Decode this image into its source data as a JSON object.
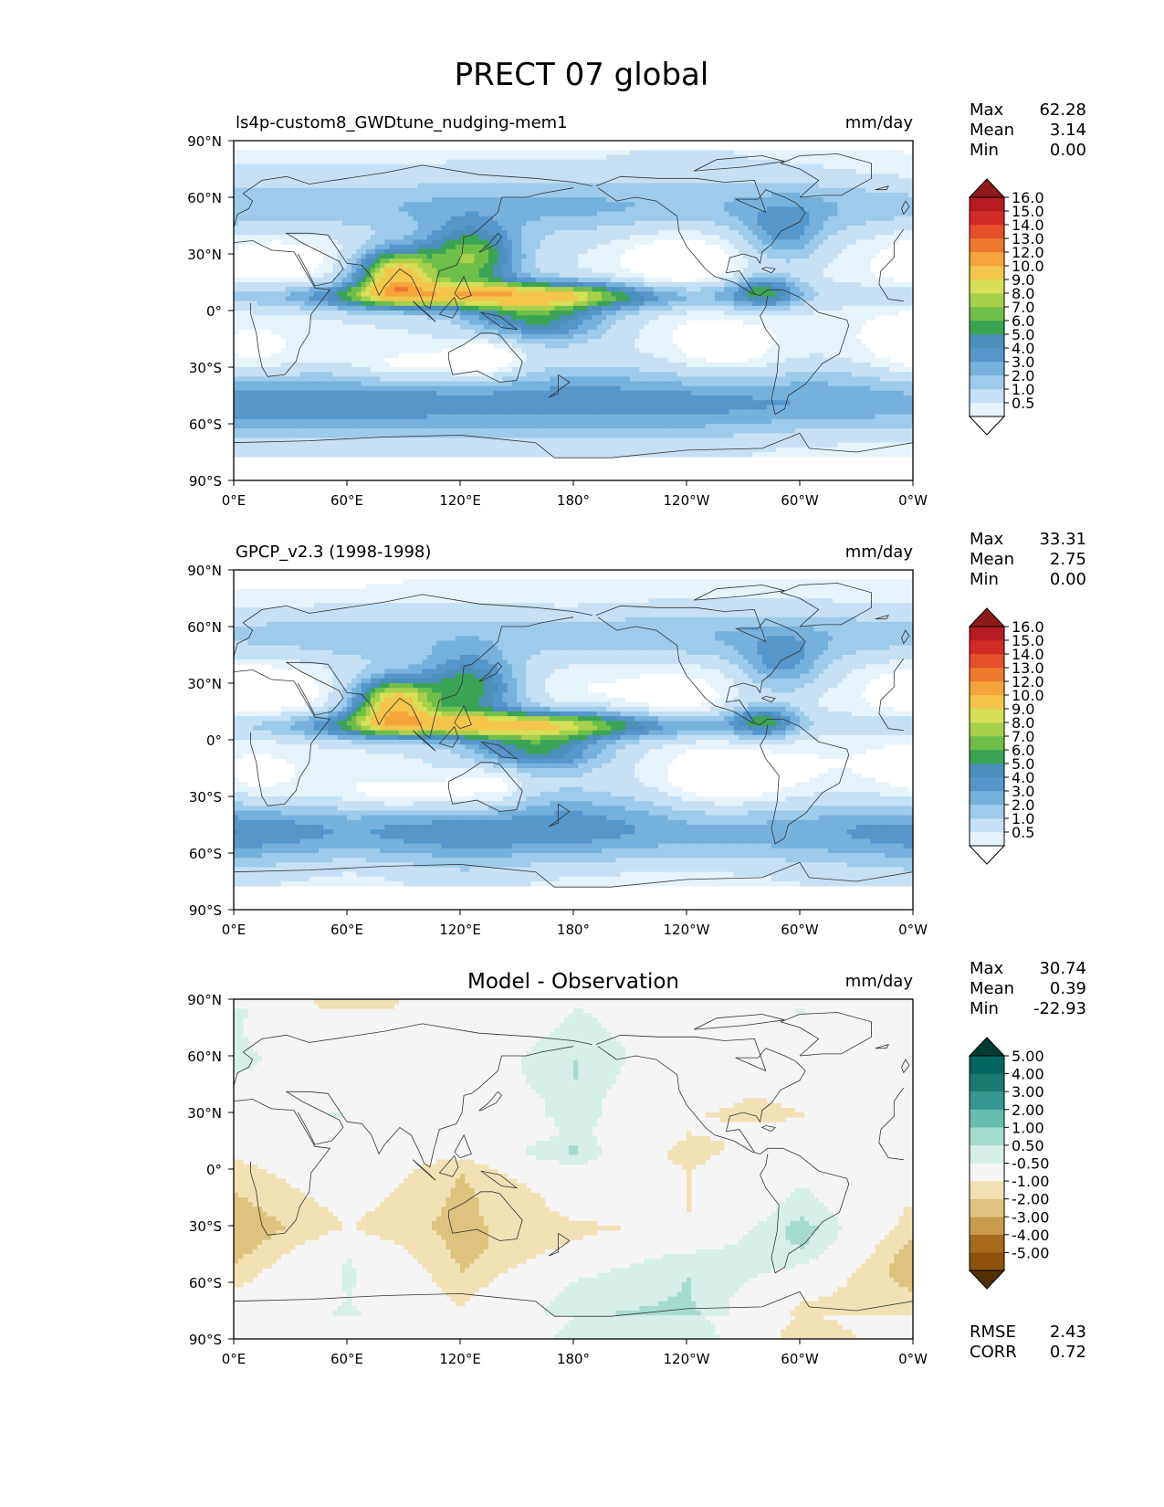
{
  "figure": {
    "title": "PRECT 07 global"
  },
  "axes": {
    "lat_ticks": [
      "90°N",
      "60°N",
      "30°N",
      "0°",
      "30°S",
      "60°S",
      "90°S"
    ],
    "lon_ticks": [
      "0°E",
      "60°E",
      "120°E",
      "180°",
      "120°W",
      "60°W",
      "0°W"
    ]
  },
  "panels": [
    {
      "left_title": "ls4p-custom8_GWDtune_nudging-mem1",
      "center_title": "",
      "units": "mm/day",
      "stats": [
        {
          "label": "Max",
          "value": "62.28"
        },
        {
          "label": "Mean",
          "value": "3.14"
        },
        {
          "label": "Min",
          "value": "0.00"
        }
      ],
      "colorbar": {
        "labels": [
          "16.0",
          "15.0",
          "14.0",
          "13.0",
          "12.0",
          "10.0",
          "9.0",
          "8.0",
          "7.0",
          "6.0",
          "5.0",
          "4.0",
          "3.0",
          "2.0",
          "1.0",
          "0.5"
        ],
        "colors": [
          "#ffffff",
          "#e7f3fb",
          "#c6e1f5",
          "#9ecbeb",
          "#76b1dc",
          "#5597cb",
          "#4b8fbb",
          "#3aa454",
          "#6ebf4a",
          "#a8d04b",
          "#d7df57",
          "#f3c64b",
          "#f5a43c",
          "#ee7a2e",
          "#e4502a",
          "#d22a26",
          "#b41c22",
          "#8f1a1a"
        ]
      },
      "footer": []
    },
    {
      "left_title": "GPCP_v2.3 (1998-1998)",
      "center_title": "",
      "units": "mm/day",
      "stats": [
        {
          "label": "Max",
          "value": "33.31"
        },
        {
          "label": "Mean",
          "value": "2.75"
        },
        {
          "label": "Min",
          "value": "0.00"
        }
      ],
      "colorbar": {
        "labels": [
          "16.0",
          "15.0",
          "14.0",
          "13.0",
          "12.0",
          "10.0",
          "9.0",
          "8.0",
          "7.0",
          "6.0",
          "5.0",
          "4.0",
          "3.0",
          "2.0",
          "1.0",
          "0.5"
        ],
        "colors": [
          "#ffffff",
          "#e7f3fb",
          "#c6e1f5",
          "#9ecbeb",
          "#76b1dc",
          "#5597cb",
          "#4b8fbb",
          "#3aa454",
          "#6ebf4a",
          "#a8d04b",
          "#d7df57",
          "#f3c64b",
          "#f5a43c",
          "#ee7a2e",
          "#e4502a",
          "#d22a26",
          "#b41c22",
          "#8f1a1a"
        ]
      },
      "footer": []
    },
    {
      "left_title": "",
      "center_title": "Model - Observation",
      "units": "mm/day",
      "stats": [
        {
          "label": "Max",
          "value": "30.74"
        },
        {
          "label": "Mean",
          "value": "0.39"
        },
        {
          "label": "Min",
          "value": "-22.93"
        }
      ],
      "colorbar": {
        "labels": [
          "5.00",
          "4.00",
          "3.00",
          "2.00",
          "1.00",
          "0.50",
          "-0.50",
          "-1.00",
          "-2.00",
          "-3.00",
          "-4.00",
          "-5.00"
        ],
        "colors": [
          "#543005",
          "#8c510a",
          "#a56a1c",
          "#c79a4c",
          "#dfc27d",
          "#f2e1b5",
          "#f5f5f5",
          "#d6efe8",
          "#a6dccf",
          "#66bdae",
          "#35978f",
          "#1a7a70",
          "#01665e",
          "#003c30"
        ]
      },
      "footer": [
        {
          "label": "RMSE",
          "value": "2.43"
        },
        {
          "label": "CORR",
          "value": "0.72"
        }
      ]
    }
  ],
  "colors": {
    "axes": "#000000",
    "coastline": "#333333",
    "precip_low": "#ffffff",
    "precip_high": "#8f1a1a",
    "diff_negative": "#543005",
    "diff_positive": "#003c30"
  }
}
